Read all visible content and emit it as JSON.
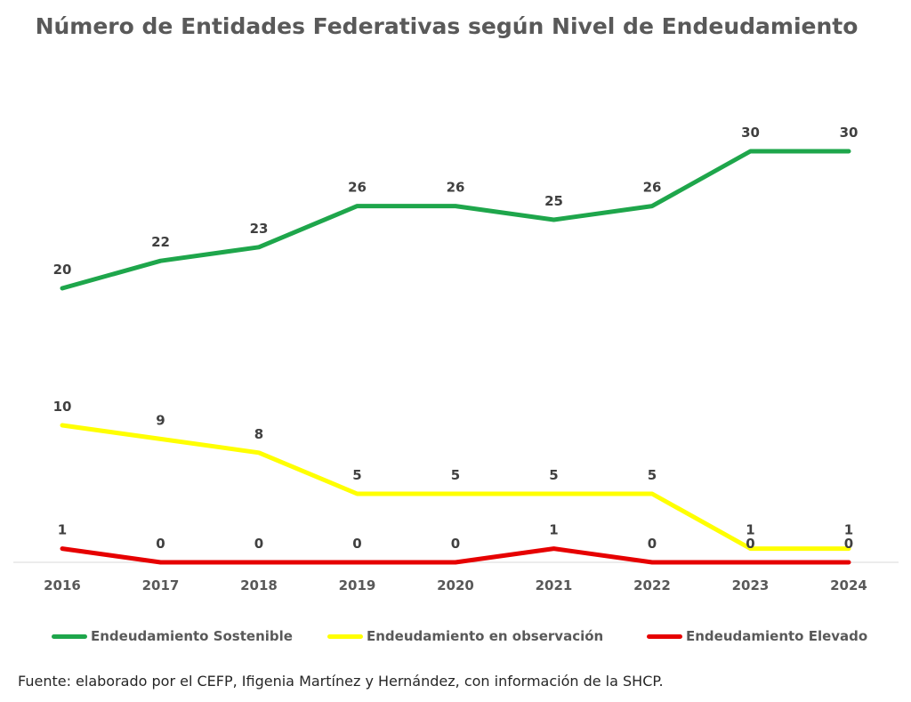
{
  "chart_data": {
    "type": "line",
    "title": "Número de Entidades Federativas según Nivel de Endeudamiento",
    "categories": [
      "2016",
      "2017",
      "2018",
      "2019",
      "2020",
      "2021",
      "2022",
      "2023",
      "2024"
    ],
    "series": [
      {
        "name": "Endeudamiento Sostenible",
        "color": "#1ea64b",
        "values": [
          20,
          22,
          23,
          26,
          26,
          25,
          26,
          30,
          30
        ]
      },
      {
        "name": "Endeudamiento en observación",
        "color": "#ffff00",
        "values": [
          10,
          9,
          8,
          5,
          5,
          5,
          5,
          1,
          1
        ]
      },
      {
        "name": "Endeudamiento Elevado",
        "color": "#e60000",
        "values": [
          1,
          0,
          0,
          0,
          0,
          1,
          0,
          0,
          0
        ]
      }
    ],
    "data_labels": true,
    "grid": false,
    "legend_position": "bottom",
    "ylim": [
      0,
      30
    ]
  },
  "footer": "Fuente: elaborado por el CEFP, Ifigenia Martínez y Hernández, con información de la SHCP."
}
